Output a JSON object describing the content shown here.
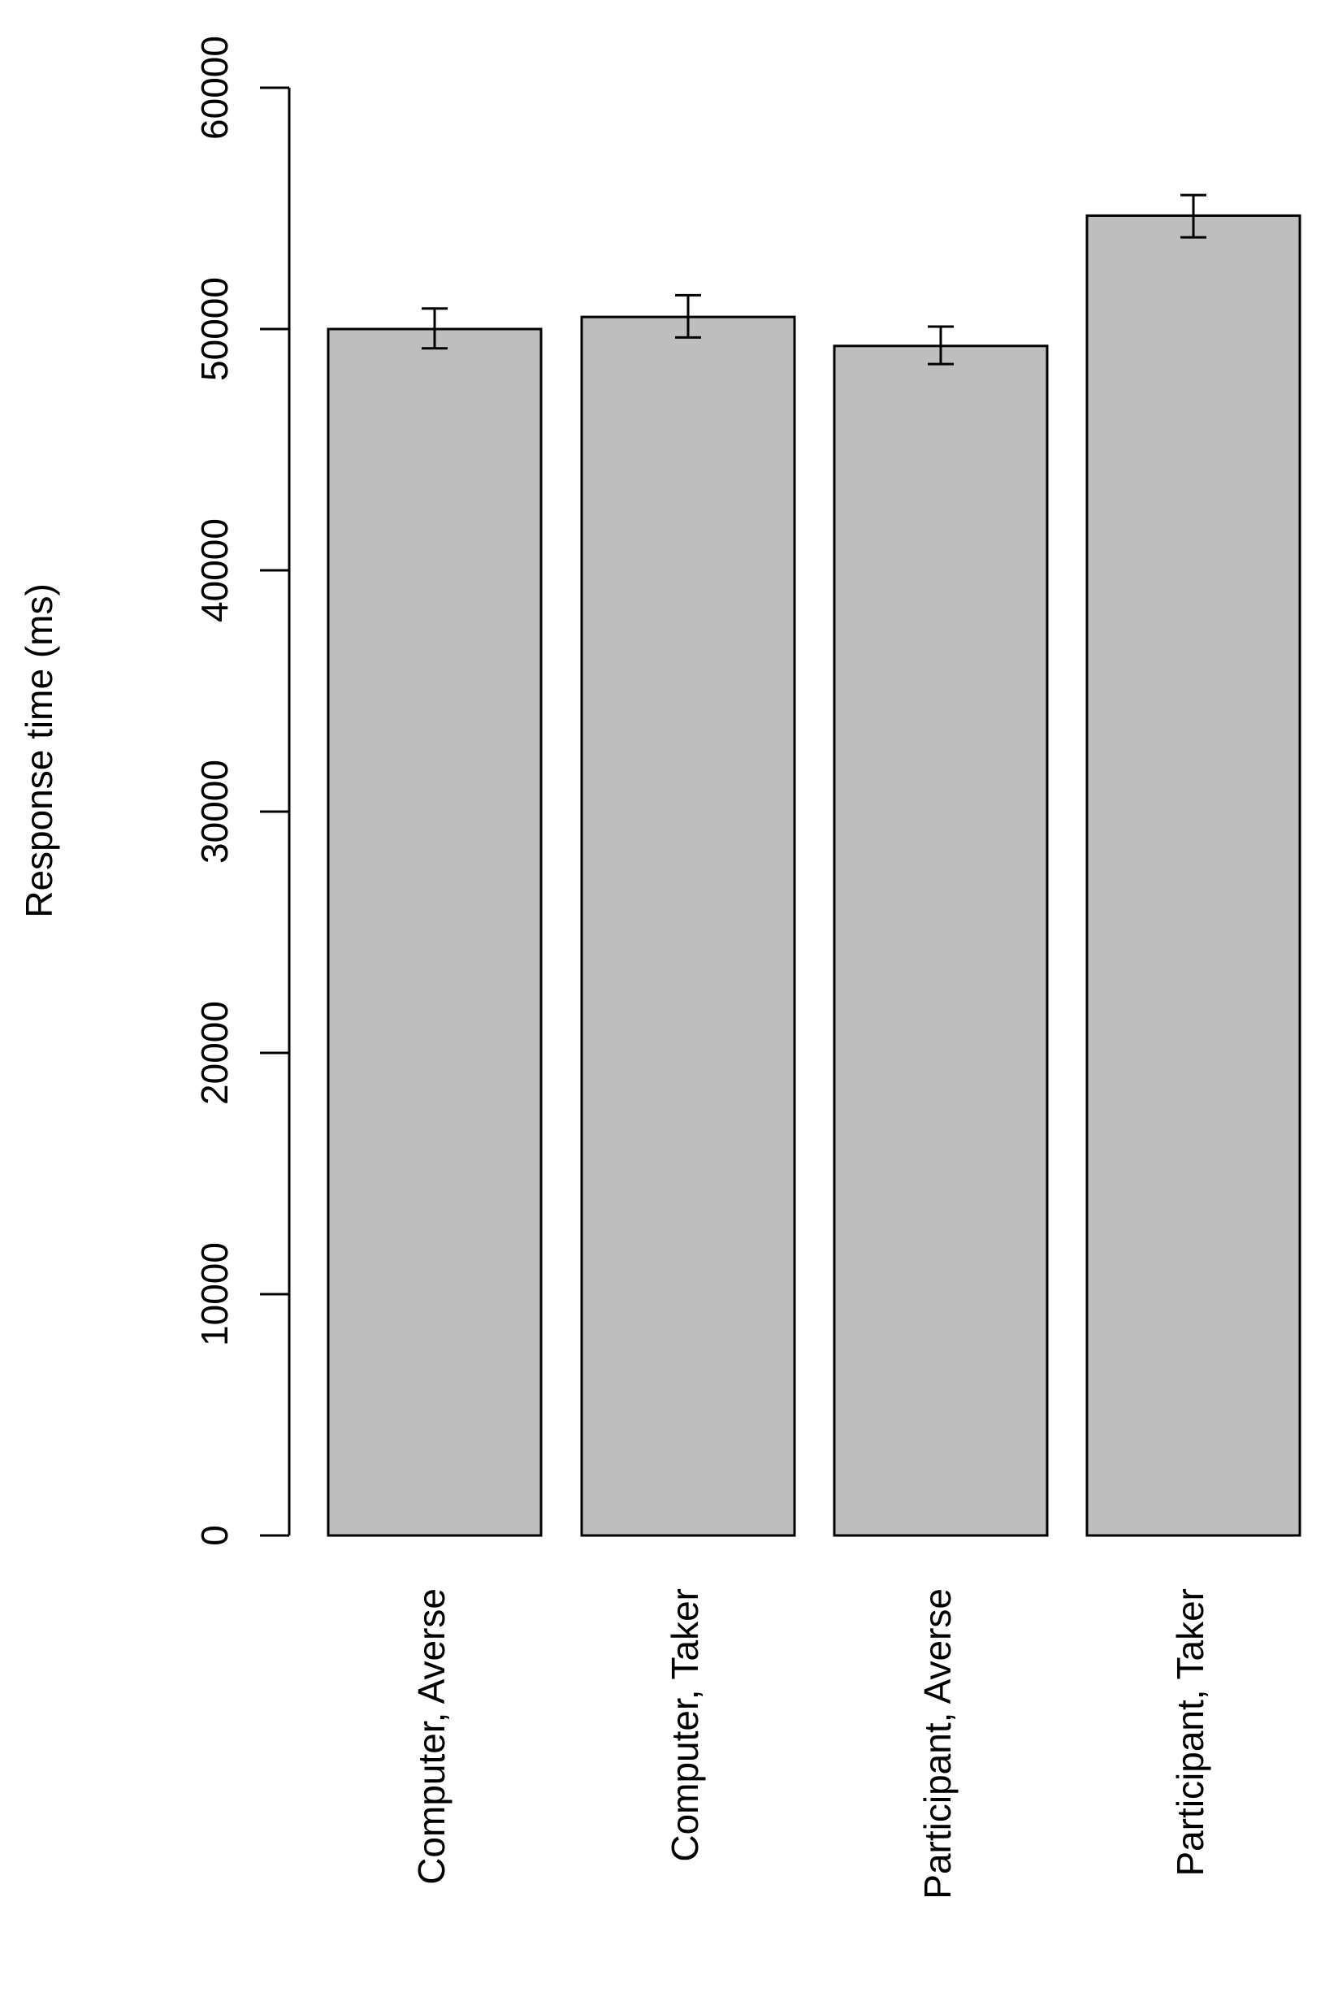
{
  "chart_data": {
    "type": "bar",
    "title": "",
    "xlabel": "",
    "ylabel": "Response time (ms)",
    "categories": [
      "Computer, Averse",
      "Computer, Taker",
      "Participant, Averse",
      "Participant, Taker"
    ],
    "values": [
      50000,
      50500,
      49300,
      54700
    ],
    "error_bars": [
      {
        "lower": 49200,
        "upper": 50850
      },
      {
        "lower": 49650,
        "upper": 51400
      },
      {
        "lower": 48550,
        "upper": 50100
      },
      {
        "lower": 53800,
        "upper": 55550
      }
    ],
    "ylim": [
      0,
      60000
    ],
    "yticks": [
      0,
      10000,
      20000,
      30000,
      40000,
      50000,
      60000
    ],
    "ytick_labels": [
      "0",
      "10000",
      "20000",
      "30000",
      "40000",
      "50000",
      "60000"
    ],
    "grid": false,
    "legend": "none",
    "colors": {
      "bar_fill": "#bebebe",
      "bar_stroke": "#000000",
      "axis": "#000000",
      "text": "#000000",
      "background": "#ffffff"
    }
  }
}
